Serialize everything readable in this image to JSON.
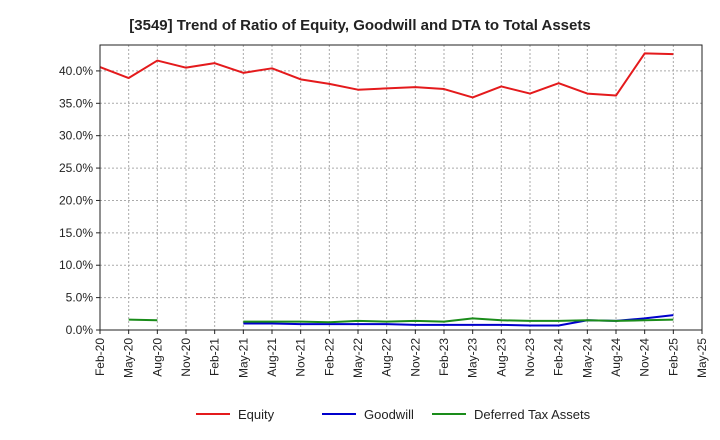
{
  "chart_data": {
    "type": "line",
    "title": "[3549]  Trend of Ratio of Equity, Goodwill and DTA to Total Assets",
    "xlabel": "",
    "ylabel": "",
    "ylim": [
      0,
      44
    ],
    "yticks": [
      0,
      5,
      10,
      15,
      20,
      25,
      30,
      35,
      40
    ],
    "ytick_labels": [
      "0.0%",
      "5.0%",
      "10.0%",
      "15.0%",
      "20.0%",
      "25.0%",
      "30.0%",
      "35.0%",
      "40.0%"
    ],
    "x": [
      "Feb-20",
      "May-20",
      "Aug-20",
      "Nov-20",
      "Feb-21",
      "May-21",
      "Aug-21",
      "Nov-21",
      "Feb-22",
      "May-22",
      "Aug-22",
      "Nov-22",
      "Feb-23",
      "May-23",
      "Aug-23",
      "Nov-23",
      "Feb-24",
      "May-24",
      "Aug-24",
      "Nov-24",
      "Feb-25",
      "May-25"
    ],
    "grid": true,
    "legend_position": "bottom",
    "series": [
      {
        "name": "Equity",
        "color": "#e41a1c",
        "values": [
          40.6,
          38.9,
          41.6,
          40.5,
          41.2,
          39.7,
          40.4,
          38.7,
          38.0,
          37.1,
          37.3,
          37.5,
          37.2,
          35.9,
          37.6,
          36.5,
          38.1,
          36.5,
          36.2,
          42.7,
          42.6,
          null
        ]
      },
      {
        "name": "Goodwill",
        "color": "#0000cc",
        "values": [
          null,
          null,
          null,
          null,
          null,
          1.0,
          1.0,
          0.9,
          0.9,
          0.9,
          0.9,
          0.8,
          0.8,
          0.8,
          0.8,
          0.7,
          0.7,
          1.5,
          1.4,
          1.8,
          2.3,
          null
        ]
      },
      {
        "name": "Deferred Tax Assets",
        "color": "#1a8c1a",
        "values": [
          null,
          1.6,
          1.5,
          null,
          null,
          1.3,
          1.3,
          1.3,
          1.2,
          1.4,
          1.3,
          1.4,
          1.3,
          1.8,
          1.5,
          1.4,
          1.4,
          1.5,
          1.4,
          1.5,
          1.6,
          null
        ]
      }
    ]
  }
}
